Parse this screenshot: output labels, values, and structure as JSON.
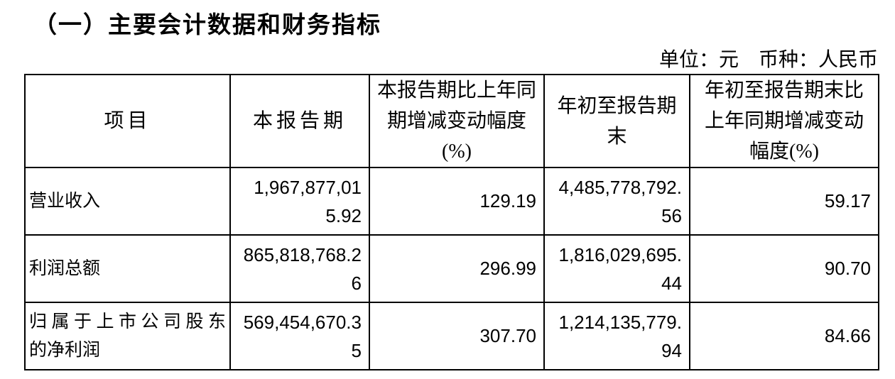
{
  "page": {
    "title": "（一）主要会计数据和财务指标",
    "unit_note": "单位：元　币种：人民币",
    "text_color": "#000000",
    "background_color": "#ffffff",
    "border_color": "#000000"
  },
  "table": {
    "columns": [
      "项目",
      "本报告期",
      "本报告期比上年同期增减变动幅度(%)",
      "年初至报告期末",
      "年初至报告期末比上年同期增减变动幅度(%)"
    ],
    "rows": [
      {
        "item": "营业收入",
        "item_lines": [
          "营业收入"
        ],
        "current_period": "1,967,877,015.92",
        "current_period_vs_prior_year_pct": "129.19",
        "ytd": "4,485,778,792.56",
        "ytd_vs_prior_year_pct": "59.17"
      },
      {
        "item": "利润总额",
        "item_lines": [
          "利润总额"
        ],
        "current_period": "865,818,768.26",
        "current_period_vs_prior_year_pct": "296.99",
        "ytd": "1,816,029,695.44",
        "ytd_vs_prior_year_pct": "90.70"
      },
      {
        "item": "归属于上市公司股东的净利润",
        "item_lines": [
          "归属于上市公司股东",
          "的净利润"
        ],
        "current_period": "569,454,670.35",
        "current_period_vs_prior_year_pct": "307.70",
        "ytd": "1,214,135,779.94",
        "ytd_vs_prior_year_pct": "84.66"
      }
    ]
  }
}
